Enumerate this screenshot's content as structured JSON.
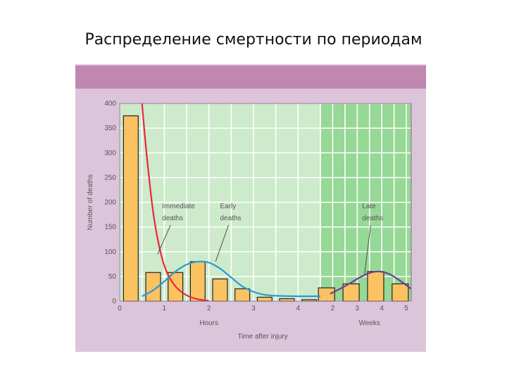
{
  "page": {
    "title": "Распределение смертности по периодам"
  },
  "chart_data": {
    "type": "bar",
    "ylabel": "Number of deaths",
    "xlabel": "Time after injury",
    "ylim": [
      0,
      400
    ],
    "yticks": [
      0,
      50,
      100,
      150,
      200,
      250,
      300,
      350,
      400
    ],
    "grid": true,
    "hours_axis": {
      "label": "Hours",
      "range": [
        0,
        4.5
      ],
      "ticks": [
        0,
        1,
        2,
        3,
        4
      ],
      "ticks_labels": [
        "0",
        "1",
        "2",
        "3",
        "4"
      ]
    },
    "weeks_axis": {
      "label": "Weeks",
      "range": [
        1.5,
        5.2
      ],
      "ticks": [
        2,
        3,
        4,
        5
      ],
      "ticks_labels": [
        "2",
        "3",
        "4",
        "5"
      ]
    },
    "bars": [
      {
        "axis": "hours",
        "x": 0.25,
        "value": 375
      },
      {
        "axis": "hours",
        "x": 0.75,
        "value": 58
      },
      {
        "axis": "hours",
        "x": 1.25,
        "value": 58
      },
      {
        "axis": "hours",
        "x": 1.75,
        "value": 80
      },
      {
        "axis": "hours",
        "x": 2.25,
        "value": 45
      },
      {
        "axis": "hours",
        "x": 2.75,
        "value": 25
      },
      {
        "axis": "hours",
        "x": 3.25,
        "value": 8
      },
      {
        "axis": "hours",
        "x": 3.75,
        "value": 5
      },
      {
        "axis": "hours",
        "x": 4.25,
        "value": 3
      },
      {
        "axis": "weeks",
        "x": 1.75,
        "value": 27
      },
      {
        "axis": "weeks",
        "x": 2.75,
        "value": 35
      },
      {
        "axis": "weeks",
        "x": 3.75,
        "value": 60
      },
      {
        "axis": "weeks",
        "x": 4.75,
        "value": 35
      }
    ],
    "curves": [
      {
        "name": "Immediate deaths",
        "color": "#e8283c",
        "axis": "hours",
        "points": [
          [
            0.5,
            400
          ],
          [
            0.6,
            300
          ],
          [
            0.75,
            180
          ],
          [
            0.9,
            105
          ],
          [
            1.05,
            60
          ],
          [
            1.25,
            30
          ],
          [
            1.5,
            12
          ],
          [
            1.75,
            4
          ],
          [
            2,
            1
          ]
        ]
      },
      {
        "name": "Early deaths",
        "color": "#2a9ad6",
        "axis": "hours",
        "points": [
          [
            0.5,
            10
          ],
          [
            0.75,
            22
          ],
          [
            1,
            40
          ],
          [
            1.25,
            60
          ],
          [
            1.5,
            74
          ],
          [
            1.75,
            80
          ],
          [
            2,
            78
          ],
          [
            2.25,
            66
          ],
          [
            2.5,
            48
          ],
          [
            2.75,
            30
          ],
          [
            3,
            19
          ],
          [
            3.25,
            13
          ],
          [
            3.5,
            11
          ],
          [
            4,
            10
          ],
          [
            4.5,
            10
          ]
        ]
      },
      {
        "name": "Late deaths",
        "color": "#6a3f9a",
        "axis": "weeks",
        "points": [
          [
            1.9,
            15
          ],
          [
            2.3,
            25
          ],
          [
            2.7,
            36
          ],
          [
            3.1,
            48
          ],
          [
            3.5,
            57
          ],
          [
            3.9,
            60
          ],
          [
            4.3,
            55
          ],
          [
            4.7,
            43
          ],
          [
            5.2,
            25
          ]
        ]
      }
    ],
    "annotations": [
      {
        "lines": [
          "Immediate",
          "deaths"
        ],
        "axis": "hours",
        "x": 0.95,
        "y": 188,
        "pointer_to": [
          0.85,
          95
        ]
      },
      {
        "lines": [
          "Early",
          "deaths"
        ],
        "axis": "hours",
        "x": 2.25,
        "y": 188,
        "pointer_to": [
          2.15,
          80
        ]
      },
      {
        "lines": [
          "Late",
          "deaths"
        ],
        "axis": "weeks",
        "x": 3.2,
        "y": 188,
        "pointer_to": [
          3.3,
          55
        ]
      }
    ],
    "colors": {
      "bar_fill": "#fbc261",
      "bar_stroke": "#222222",
      "hours_background": "#cdeacb",
      "weeks_background": "#96d895",
      "grid": "#ffffff",
      "axis_frame": "#8a6a86"
    }
  }
}
